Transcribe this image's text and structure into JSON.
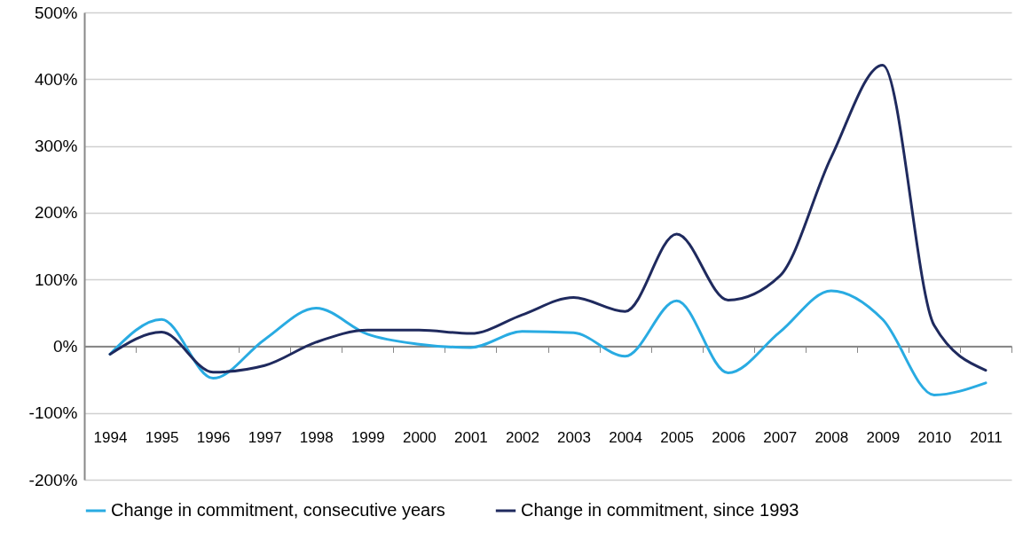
{
  "chart_data": {
    "type": "line",
    "categories": [
      "1994",
      "1995",
      "1996",
      "1997",
      "1998",
      "1999",
      "2000",
      "2001",
      "2002",
      "2003",
      "2004",
      "2005",
      "2006",
      "2007",
      "2008",
      "2009",
      "2010",
      "2011"
    ],
    "series": [
      {
        "name": "Change in commitment, consecutive years",
        "color": "#29abe2",
        "values": [
          -12,
          40,
          -48,
          10,
          57,
          18,
          3,
          -2,
          22,
          20,
          -15,
          68,
          -40,
          21,
          83,
          40,
          -73,
          -55
        ]
      },
      {
        "name": "Change in commitment, since 1993",
        "color": "#1f2a5e",
        "values": [
          -12,
          21,
          -39,
          -29,
          6,
          24,
          24,
          19,
          47,
          73,
          52,
          168,
          69,
          105,
          283,
          421,
          31,
          -36
        ]
      }
    ],
    "ylim": [
      -200,
      500
    ],
    "yticks": [
      {
        "value": -200,
        "label": "-200%"
      },
      {
        "value": -100,
        "label": "-100%"
      },
      {
        "value": 0,
        "label": "0%"
      },
      {
        "value": 100,
        "label": "100%"
      },
      {
        "value": 200,
        "label": "200%"
      },
      {
        "value": 300,
        "label": "300%"
      },
      {
        "value": 400,
        "label": "400%"
      },
      {
        "value": 500,
        "label": "500%"
      }
    ],
    "grid": "y",
    "legend": "bottom"
  }
}
